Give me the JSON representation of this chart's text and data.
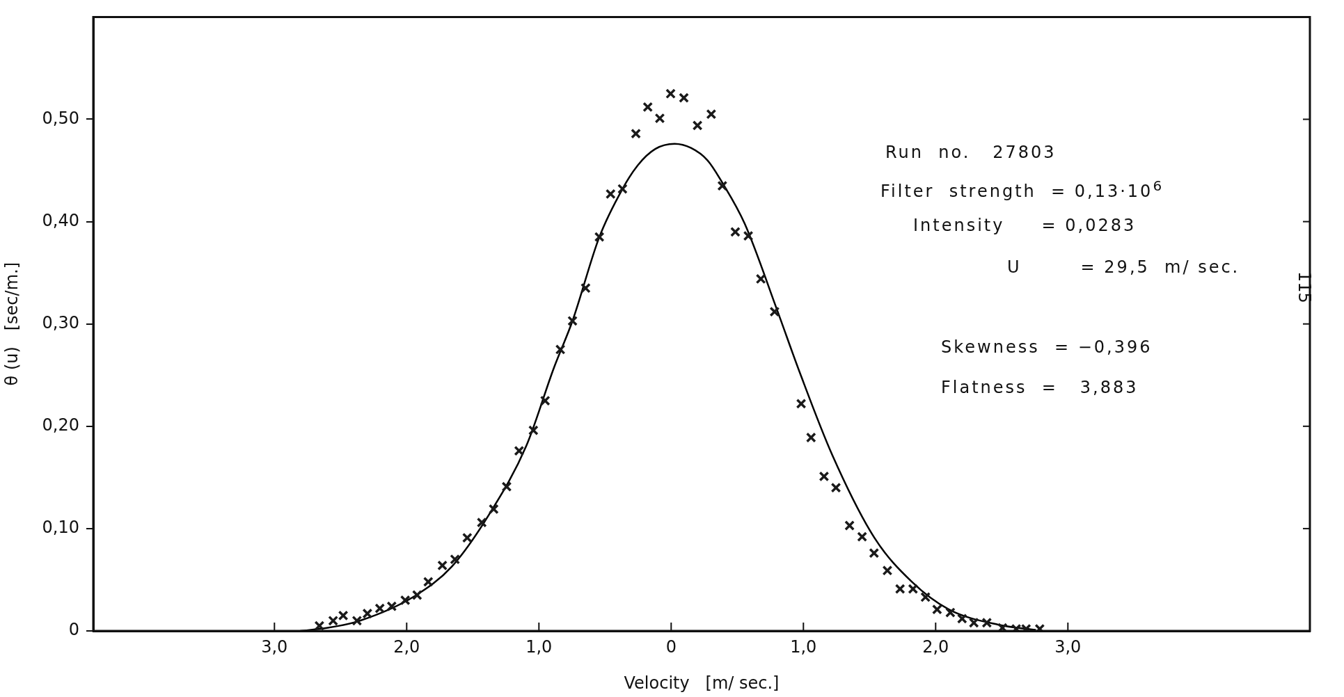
{
  "chart_data": {
    "type": "scatter",
    "xlabel": "Velocity   [m/ sec.]",
    "ylabel": "θ (u)   [sec/m.]",
    "annotations": [
      "Run  no.   27803",
      "Filter  strength  = 0,13·10$^{6}$",
      "Intensity     = 0,0283",
      "U        = 29,5  m/ sec.",
      "Skewness  = −0,396",
      "Flatness  =   3,883",
      "115"
    ],
    "xlim": [
      -4.37,
      4.83
    ],
    "ylim": [
      0,
      0.6
    ],
    "xticks": [
      {
        "value": -3,
        "label": "3,0"
      },
      {
        "value": -2,
        "label": "2,0"
      },
      {
        "value": -1,
        "label": "1,0"
      },
      0,
      {
        "value": 1,
        "label": "1,0"
      },
      {
        "value": 2,
        "label": "2,0"
      },
      {
        "value": 3,
        "label": "3,0"
      }
    ],
    "yticks": [
      0,
      {
        "value": 0.1,
        "label": "0,10"
      },
      {
        "value": 0.2,
        "label": "0,20"
      },
      {
        "value": 0.3,
        "label": "0,30"
      },
      {
        "value": 0.4,
        "label": "0,40"
      },
      {
        "value": 0.5,
        "label": "0,50"
      }
    ],
    "grid": false,
    "legend": false,
    "series": [
      {
        "type": "scatter",
        "color": "#1a1a1a",
        "marker": "cross",
        "x": [
          -2.66,
          -2.556,
          -2.48,
          -2.376,
          -2.297,
          -2.203,
          -2.113,
          -2.011,
          -1.921,
          -1.837,
          -1.73,
          -1.635,
          -1.542,
          -1.432,
          -1.342,
          -1.244,
          -1.15,
          -1.042,
          -0.953,
          -0.838,
          -0.746,
          -0.647,
          -0.543,
          -0.458,
          -0.368,
          -0.267,
          -0.177,
          -0.086,
          -0.004,
          0.096,
          0.199,
          0.303,
          0.387,
          0.485,
          0.583,
          0.678,
          0.782,
          0.983,
          1.058,
          1.156,
          1.246,
          1.349,
          1.444,
          1.534,
          1.635,
          1.731,
          1.829,
          1.923,
          2.011,
          2.111,
          2.2,
          2.289,
          2.387,
          2.505,
          2.609,
          2.684,
          2.787
        ],
        "values": [
          0.005,
          0.01,
          0.015,
          0.01,
          0.017,
          0.022,
          0.024,
          0.03,
          0.035,
          0.048,
          0.064,
          0.07,
          0.091,
          0.106,
          0.119,
          0.141,
          0.176,
          0.196,
          0.225,
          0.275,
          0.303,
          0.335,
          0.385,
          0.427,
          0.432,
          0.486,
          0.512,
          0.501,
          0.525,
          0.521,
          0.494,
          0.505,
          0.435,
          0.39,
          0.386,
          0.344,
          0.312,
          0.222,
          0.189,
          0.151,
          0.14,
          0.103,
          0.092,
          0.076,
          0.059,
          0.041,
          0.041,
          0.033,
          0.021,
          0.018,
          0.012,
          0.008,
          0.008,
          0.003,
          0.002,
          0.002,
          0.002
        ]
      },
      {
        "type": "line",
        "color": "#000000",
        "marker": "none",
        "line_style": "solid",
        "x": [
          -2.805,
          -2.598,
          -2.353,
          -1.94,
          -1.658,
          -1.376,
          -1.095,
          -0.887,
          -0.746,
          -0.543,
          -0.368,
          -0.253,
          -0.12,
          0.026,
          0.15,
          0.274,
          0.387,
          0.556,
          0.8,
          0.974,
          1.218,
          1.537,
          1.82,
          2.1,
          2.477,
          2.758
        ],
        "values": [
          0,
          0.003,
          0.01,
          0.034,
          0.063,
          0.114,
          0.181,
          0.257,
          0.303,
          0.385,
          0.432,
          0.455,
          0.471,
          0.476,
          0.472,
          0.46,
          0.438,
          0.398,
          0.314,
          0.252,
          0.172,
          0.091,
          0.048,
          0.021,
          0.006,
          0.001
        ]
      }
    ]
  }
}
